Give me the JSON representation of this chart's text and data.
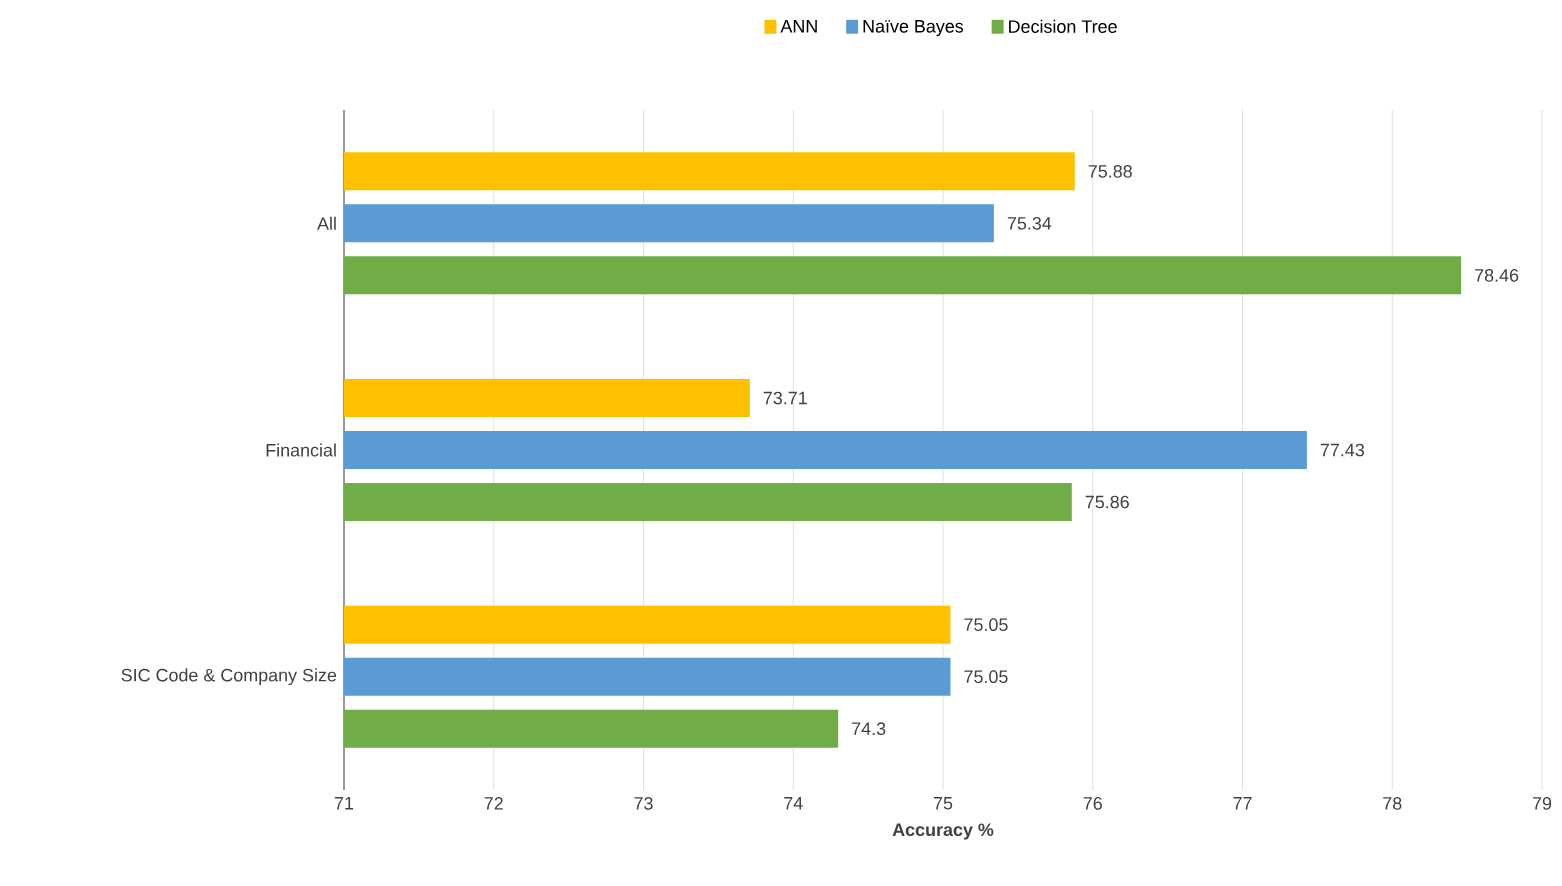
{
  "chart_data": {
    "type": "bar",
    "orientation": "horizontal",
    "categories": [
      "All",
      "Financial",
      "SIC Code & Company Size"
    ],
    "series": [
      {
        "name": "ANN",
        "color": "#ffc000",
        "values": [
          75.88,
          73.71,
          75.05
        ]
      },
      {
        "name": "Naïve Bayes",
        "color": "#5b9bd5",
        "values": [
          75.34,
          77.43,
          75.05
        ]
      },
      {
        "name": "Decision Tree",
        "color": "#70ad47",
        "values": [
          78.46,
          75.86,
          74.3
        ]
      }
    ],
    "xlim": [
      71,
      79
    ],
    "xticks": [
      71,
      72,
      73,
      74,
      75,
      76,
      77,
      78,
      79
    ],
    "xlabel": "Accuracy  %",
    "grid": "x",
    "legend": "top",
    "data_labels": true
  }
}
